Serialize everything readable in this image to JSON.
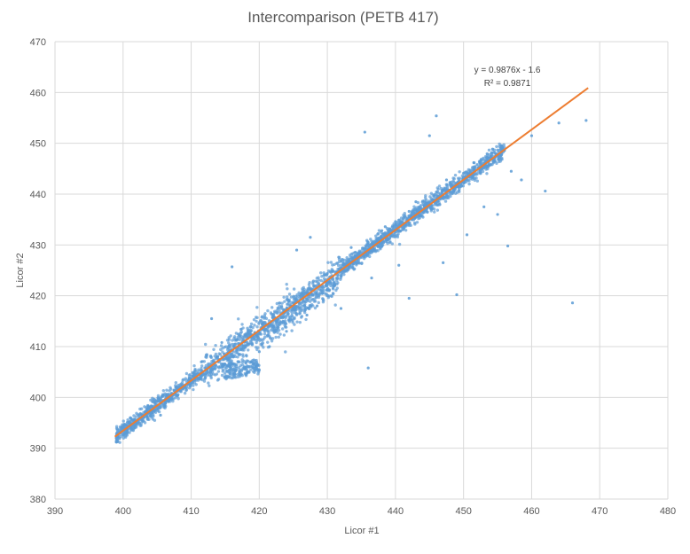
{
  "chart_data": {
    "type": "scatter",
    "title": "Intercomparison (PETB 417)",
    "xlabel": "Licor #1",
    "ylabel": "Licor #2",
    "xlim": [
      390,
      480
    ],
    "ylim": [
      380,
      470
    ],
    "xticks": [
      390,
      400,
      410,
      420,
      430,
      440,
      450,
      460,
      470,
      480
    ],
    "yticks": [
      380,
      390,
      400,
      410,
      420,
      430,
      440,
      450,
      460,
      470
    ],
    "grid": true,
    "legend": "none",
    "colors": {
      "points": "#5b9bd5",
      "trendline": "#ed7d31",
      "grid": "#d9d9d9",
      "text": "#595959"
    },
    "series": [
      {
        "values": [
          [
            399.0,
            391.2
          ],
          [
            400.5,
            393.0
          ],
          [
            402.0,
            394.8
          ],
          [
            404.0,
            396.9
          ],
          [
            406.0,
            399.4
          ],
          [
            408.0,
            401.2
          ],
          [
            410.0,
            403.6
          ],
          [
            412.0,
            405.8
          ],
          [
            414.0,
            407.5
          ],
          [
            416.0,
            409.4
          ],
          [
            417.5,
            411.0
          ],
          [
            419.0,
            412.3
          ],
          [
            420.5,
            414.4
          ],
          [
            422.0,
            415.6
          ],
          [
            423.5,
            417.3
          ],
          [
            425.0,
            418.6
          ],
          [
            426.5,
            420.4
          ],
          [
            428.0,
            421.9
          ],
          [
            430.0,
            424.4
          ],
          [
            432.0,
            426.8
          ],
          [
            434.0,
            428.5
          ],
          [
            436.0,
            430.5
          ],
          [
            438.0,
            432.8
          ],
          [
            440.0,
            434.6
          ],
          [
            442.0,
            436.6
          ],
          [
            444.0,
            438.6
          ],
          [
            446.0,
            440.4
          ],
          [
            448.0,
            442.3
          ],
          [
            450.0,
            444.1
          ],
          [
            452.0,
            445.8
          ],
          [
            454.0,
            447.3
          ],
          [
            456.0,
            448.6
          ],
          [
            415.5,
            404.0
          ],
          [
            416.5,
            405.2
          ],
          [
            418.0,
            404.5
          ],
          [
            419.5,
            406.0
          ],
          [
            421.5,
            410.0
          ],
          [
            424.0,
            413.0
          ],
          [
            427.0,
            416.2
          ],
          [
            428.5,
            418.0
          ],
          [
            413.0,
            415.5
          ],
          [
            416.0,
            425.7
          ],
          [
            427.5,
            431.5
          ],
          [
            435.5,
            452.2
          ],
          [
            436.0,
            405.8
          ],
          [
            442.0,
            419.5
          ],
          [
            443.0,
            438.5
          ],
          [
            445.0,
            451.5
          ],
          [
            446.0,
            455.4
          ],
          [
            449.0,
            420.2
          ],
          [
            456.5,
            429.8
          ],
          [
            462.0,
            440.6
          ],
          [
            464.0,
            454.0
          ],
          [
            466.0,
            418.6
          ],
          [
            468.0,
            454.5
          ],
          [
            460.0,
            451.5
          ],
          [
            458.5,
            442.8
          ],
          [
            455.0,
            436.0
          ],
          [
            450.5,
            432.0
          ],
          [
            447.0,
            426.5
          ],
          [
            453.0,
            437.5
          ],
          [
            457.0,
            444.5
          ],
          [
            440.5,
            426.0
          ],
          [
            436.5,
            423.5
          ],
          [
            432.0,
            417.5
          ],
          [
            425.5,
            429.0
          ],
          [
            409.0,
            402.0
          ],
          [
            405.5,
            396.5
          ],
          [
            403.0,
            396.0
          ],
          [
            401.5,
            393.5
          ],
          [
            411.5,
            407.0
          ],
          [
            414.5,
            410.8
          ],
          [
            418.5,
            410.5
          ],
          [
            420.0,
            409.0
          ],
          [
            433.5,
            429.5
          ],
          [
            438.5,
            433.6
          ],
          [
            443.5,
            437.0
          ],
          [
            447.5,
            442.8
          ],
          [
            451.5,
            446.2
          ],
          [
            455.5,
            448.8
          ]
        ]
      }
    ],
    "trendline": {
      "slope": 0.9876,
      "intercept": -1.6,
      "x_range": [
        398.8,
        468.3
      ],
      "equation_text": "y = 0.9876x - 1.6",
      "r2_text": "R² = 0.9871"
    }
  }
}
